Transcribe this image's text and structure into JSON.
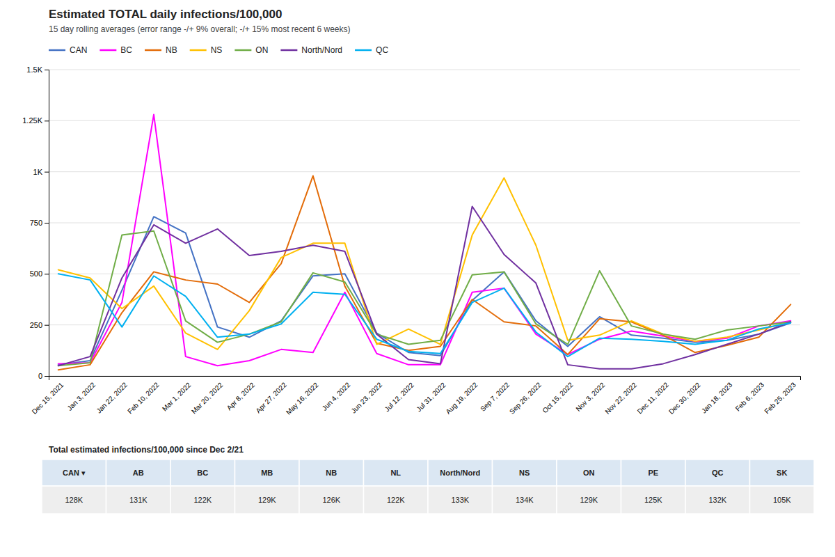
{
  "chart_data": {
    "type": "line",
    "title": "Estimated TOTAL daily infections/100,000",
    "subtitle": "15 day rolling averages (error range -/+ 9% overall; -/+ 15% most recent 6 weeks)",
    "categories": [
      "Dec 15, 2021",
      "Jan 3, 2022",
      "Jan 22, 2022",
      "Feb 10, 2022",
      "Mar 1, 2022",
      "Mar 20, 2022",
      "Apr 8, 2022",
      "Apr 27, 2022",
      "May 16, 2022",
      "Jun 4, 2022",
      "Jun 23, 2022",
      "Jul 12, 2022",
      "Jul 31, 2022",
      "Aug 19, 2022",
      "Sep 7, 2022",
      "Sep 26, 2022",
      "Oct 15, 2022",
      "Nov 3, 2022",
      "Nov 22, 2022",
      "Dec 11, 2022",
      "Dec 30, 2022",
      "Jan 18, 2023",
      "Feb 6, 2023",
      "Feb 25, 2023"
    ],
    "series": [
      {
        "name": "CAN",
        "color": "#4472C4",
        "values": [
          55,
          75,
          420,
          780,
          700,
          240,
          190,
          270,
          490,
          500,
          210,
          115,
          100,
          370,
          510,
          270,
          145,
          290,
          200,
          185,
          165,
          175,
          205,
          260
        ]
      },
      {
        "name": "BC",
        "color": "#FF00FF",
        "values": [
          60,
          65,
          360,
          1280,
          95,
          50,
          75,
          130,
          115,
          410,
          110,
          55,
          55,
          410,
          430,
          205,
          105,
          180,
          220,
          195,
          170,
          185,
          245,
          270
        ]
      },
      {
        "name": "NB",
        "color": "#E36C09",
        "values": [
          30,
          55,
          310,
          510,
          470,
          450,
          360,
          550,
          980,
          440,
          160,
          125,
          145,
          375,
          265,
          245,
          105,
          280,
          265,
          200,
          115,
          150,
          190,
          350
        ]
      },
      {
        "name": "NS",
        "color": "#FFC000",
        "values": [
          520,
          480,
          330,
          440,
          210,
          130,
          320,
          580,
          650,
          650,
          155,
          230,
          155,
          690,
          970,
          640,
          175,
          200,
          270,
          205,
          170,
          190,
          225,
          265
        ]
      },
      {
        "name": "ON",
        "color": "#70AD47",
        "values": [
          50,
          65,
          690,
          710,
          270,
          165,
          205,
          265,
          505,
          460,
          205,
          155,
          175,
          495,
          510,
          255,
          155,
          515,
          245,
          205,
          180,
          225,
          245,
          265
        ]
      },
      {
        "name": "North/Nord",
        "color": "#7030A0",
        "values": [
          50,
          95,
          480,
          740,
          650,
          720,
          590,
          610,
          640,
          610,
          205,
          80,
          60,
          830,
          595,
          455,
          55,
          35,
          35,
          60,
          105,
          155,
          205,
          265
        ]
      },
      {
        "name": "QC",
        "color": "#00B0F0",
        "values": [
          500,
          470,
          240,
          490,
          390,
          190,
          205,
          255,
          410,
          400,
          180,
          120,
          110,
          360,
          430,
          215,
          95,
          185,
          180,
          170,
          155,
          175,
          230,
          260
        ]
      }
    ],
    "ylim": [
      0,
      1500
    ],
    "yticks": [
      0,
      250,
      500,
      750,
      {
        "value": 1000,
        "label": "1K"
      },
      {
        "value": 1250,
        "label": "1.25K"
      },
      {
        "value": 1500,
        "label": "1.5K"
      }
    ],
    "grid": true,
    "legend": "top",
    "table": {
      "title": "Total estimated infections/100,000 since Dec 2/21",
      "headers": [
        "CAN ▾",
        "AB",
        "BC",
        "MB",
        "NB",
        "NL",
        "North/Nord",
        "NS",
        "ON",
        "PE",
        "QC",
        "SK"
      ],
      "values": [
        "128K",
        "131K",
        "122K",
        "129K",
        "126K",
        "122K",
        "133K",
        "134K",
        "129K",
        "125K",
        "132K",
        "105K"
      ]
    }
  }
}
